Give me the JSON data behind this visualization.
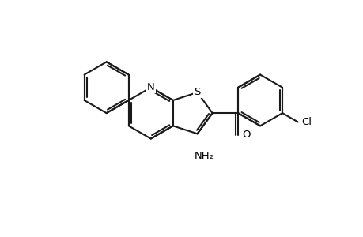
{
  "bg_color": "#ffffff",
  "line_color": "#1a1a1a",
  "line_width": 1.5,
  "atoms": {
    "S": "S",
    "N": "N",
    "O": "O",
    "NH2": "NH₂",
    "Cl": "Cl"
  },
  "figsize": [
    4.6,
    3.0
  ],
  "dpi": 100
}
